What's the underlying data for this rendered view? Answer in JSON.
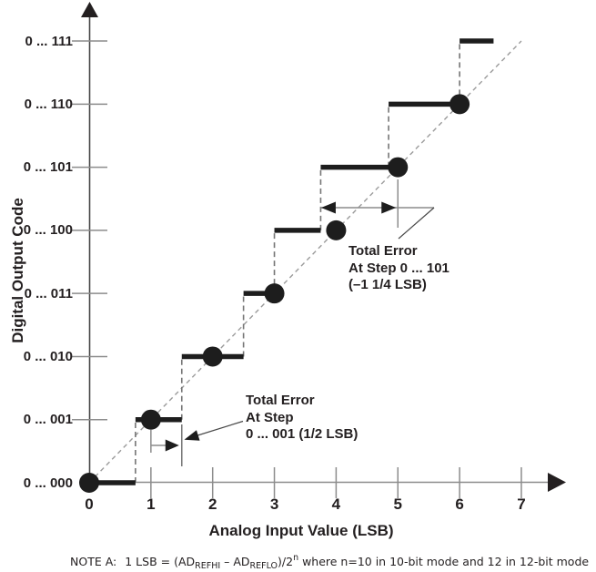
{
  "colors": {
    "background": "#ffffff",
    "ink": "#231f20",
    "step_black": "#1d1d1d",
    "gray_line": "#8c8c8c",
    "gray_dash": "#757575",
    "ideal_dash": "#9b9b9b",
    "axis_dark": "#474747"
  },
  "axis": {
    "xlabel": "Analog Input Value (LSB)",
    "ylabel": "Digital Output Code"
  },
  "note": {
    "label": "NOTE A:",
    "f1": "1 LSB = (AD",
    "sub1": "REFHI",
    "f2": " – AD",
    "sub2": "REFLO",
    "f3": ")/2",
    "sup": "n",
    "f4": " where n=10 in 10-bit mode and 12 in 12-bit mode"
  },
  "chart_data": {
    "type": "line",
    "variant": "adc-transfer-staircase",
    "title": "",
    "xlabel": "Analog Input Value (LSB)",
    "ylabel": "Digital Output Code",
    "xlim": [
      0,
      7.7
    ],
    "ylim": [
      0,
      7.7
    ],
    "grid": false,
    "x_ticks": [
      0,
      1,
      2,
      3,
      4,
      5,
      6,
      7
    ],
    "x_tick_labels": [
      "0",
      "1",
      "2",
      "3",
      "4",
      "5",
      "6",
      "7"
    ],
    "y_ticks": [
      0,
      1,
      2,
      3,
      4,
      5,
      6,
      7
    ],
    "y_tick_labels": [
      "0 ... 000",
      "0 ... 001",
      "0 ... 010",
      "0 ... 011",
      "0 ... 100",
      "0 ... 101",
      "0 ... 110",
      "0 ... 111"
    ],
    "ideal_line": {
      "x": [
        0,
        7
      ],
      "y": [
        0,
        7
      ],
      "style": "dashed"
    },
    "code_center_dots": {
      "x": [
        0,
        1,
        2,
        3,
        4,
        5,
        6
      ],
      "y": [
        0,
        1,
        2,
        3,
        4,
        5,
        6
      ]
    },
    "staircase_steps": [
      {
        "code": 0,
        "label": "0 ... 000",
        "x_start": 0,
        "x_end": 0.75
      },
      {
        "code": 1,
        "label": "0 ... 001",
        "x_start": 0.75,
        "x_end": 1.5
      },
      {
        "code": 2,
        "label": "0 ... 010",
        "x_start": 1.5,
        "x_end": 2.5
      },
      {
        "code": 3,
        "label": "0 ... 011",
        "x_start": 2.5,
        "x_end": 3
      },
      {
        "code": 4,
        "label": "0 ... 100",
        "x_start": 3,
        "x_end": 3.75
      },
      {
        "code": 5,
        "label": "0 ... 101",
        "x_start": 3.75,
        "x_end": 4.85
      },
      {
        "code": 6,
        "label": "0 ... 110",
        "x_start": 4.85,
        "x_end": 6
      },
      {
        "code": 7,
        "label": "0 ... 111",
        "x_start": 6,
        "x_end": 6.55
      }
    ],
    "annotations": [
      {
        "id": "error-101",
        "lines": [
          "Total Error",
          "At Step 0 ... 101",
          "(–1 1/4 LSB)"
        ],
        "error_lsb": "-1 1/4",
        "measure_from_x": 3.75,
        "measure_to_x": 5
      },
      {
        "id": "error-001",
        "lines": [
          "Total Error",
          "At Step",
          "0 ... 001 (1/2 LSB)"
        ],
        "error_lsb": "1/2",
        "measure_from_x": 1,
        "measure_to_x": 1.5
      }
    ]
  }
}
